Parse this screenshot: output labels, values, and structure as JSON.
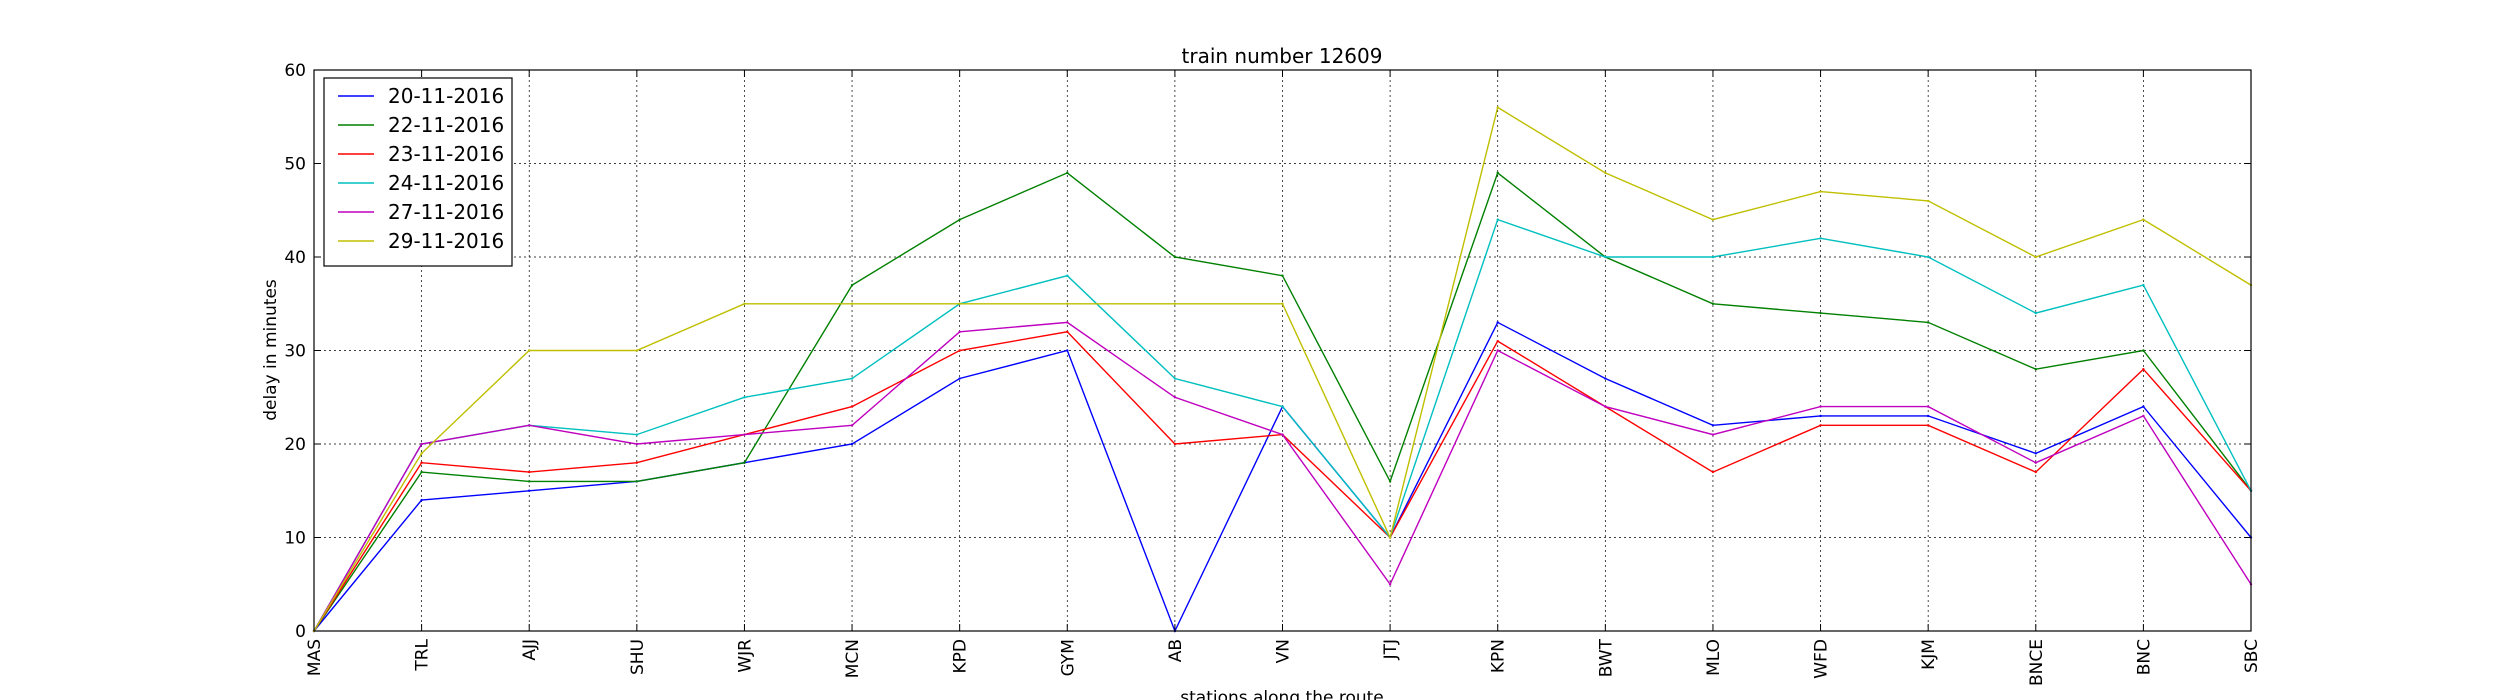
{
  "chart_data": {
    "type": "line",
    "title": "train number 12609",
    "xlabel": "stations along the route",
    "ylabel": "delay in minutes",
    "ylim": [
      0,
      60
    ],
    "yticks": [
      0,
      10,
      20,
      30,
      40,
      50,
      60
    ],
    "grid": true,
    "legend_position": "top-left",
    "categories": [
      "MAS",
      "TRL",
      "AJJ",
      "SHU",
      "WJR",
      "MCN",
      "KPD",
      "GYM",
      "AB",
      "VN",
      "JTJ",
      "KPN",
      "BWT",
      "MLO",
      "WFD",
      "KJM",
      "BNCE",
      "BNC",
      "SBC"
    ],
    "series": [
      {
        "name": "20-11-2016",
        "color": "#0000ff",
        "values": [
          0,
          14,
          15,
          16,
          18,
          20,
          27,
          30,
          0,
          24,
          10,
          33,
          27,
          22,
          23,
          23,
          19,
          24,
          10
        ]
      },
      {
        "name": "22-11-2016",
        "color": "#008000",
        "values": [
          0,
          17,
          16,
          16,
          18,
          37,
          44,
          49,
          40,
          38,
          16,
          49,
          40,
          35,
          34,
          33,
          28,
          30,
          15
        ]
      },
      {
        "name": "23-11-2016",
        "color": "#ff0000",
        "values": [
          0,
          18,
          17,
          18,
          21,
          24,
          30,
          32,
          20,
          21,
          10,
          31,
          24,
          17,
          22,
          22,
          17,
          28,
          15
        ]
      },
      {
        "name": "24-11-2016",
        "color": "#00bfbf",
        "values": [
          0,
          20,
          22,
          21,
          25,
          27,
          35,
          38,
          27,
          24,
          10,
          44,
          40,
          40,
          42,
          40,
          34,
          37,
          15
        ]
      },
      {
        "name": "27-11-2016",
        "color": "#bf00bf",
        "values": [
          0,
          20,
          22,
          20,
          21,
          22,
          32,
          33,
          25,
          21,
          5,
          30,
          24,
          21,
          24,
          24,
          18,
          23,
          5
        ]
      },
      {
        "name": "29-11-2016",
        "color": "#bfbf00",
        "values": [
          0,
          19,
          30,
          30,
          35,
          35,
          35,
          35,
          35,
          35,
          10,
          56,
          49,
          44,
          47,
          46,
          40,
          44,
          37
        ]
      }
    ]
  }
}
